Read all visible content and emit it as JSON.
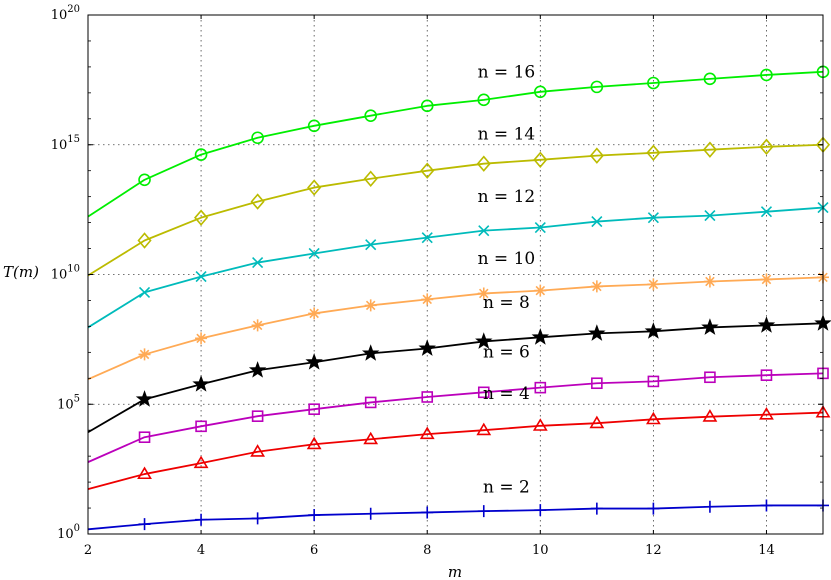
{
  "chart_data": {
    "type": "line",
    "xlabel": "m",
    "ylabel": "T(m)",
    "yscale": "log",
    "xlim": [
      2,
      15
    ],
    "ylim": [
      1,
      1e+20
    ],
    "x_ticks": [
      "2",
      "4",
      "6",
      "8",
      "10",
      "12",
      "14"
    ],
    "y_ticks": [
      {
        "base": "10",
        "exp": "0",
        "value": 1
      },
      {
        "base": "10",
        "exp": "5",
        "value": 100000.0
      },
      {
        "base": "10",
        "exp": "10",
        "value": 10000000000.0
      },
      {
        "base": "10",
        "exp": "15",
        "value": 1000000000000000.0
      },
      {
        "base": "10",
        "exp": "20",
        "value": 1e+20
      }
    ],
    "grid": true,
    "x": [
      2,
      3,
      4,
      5,
      6,
      7,
      8,
      9,
      10,
      11,
      12,
      13,
      14,
      15
    ],
    "series": [
      {
        "name": "n = 2",
        "color": "#0000cc",
        "marker": "plus",
        "log10_values": [
          0.18,
          0.38,
          0.55,
          0.6,
          0.73,
          0.78,
          0.83,
          0.88,
          0.92,
          0.98,
          0.98,
          1.05,
          1.1,
          1.1
        ]
      },
      {
        "name": "n = 4",
        "color": "#ee0000",
        "marker": "triangle",
        "log10_values": [
          1.73,
          2.31,
          2.73,
          3.17,
          3.46,
          3.65,
          3.85,
          4.0,
          4.17,
          4.27,
          4.42,
          4.52,
          4.6,
          4.68
        ]
      },
      {
        "name": "n = 6",
        "color": "#bb00bb",
        "marker": "square",
        "log10_values": [
          2.77,
          3.73,
          4.15,
          4.54,
          4.81,
          5.07,
          5.28,
          5.46,
          5.64,
          5.81,
          5.88,
          6.04,
          6.12,
          6.19
        ]
      },
      {
        "name": "n = 8",
        "color": "#000000",
        "marker": "star",
        "log10_values": [
          3.92,
          5.19,
          5.77,
          6.31,
          6.62,
          6.96,
          7.15,
          7.42,
          7.58,
          7.73,
          7.81,
          7.96,
          8.04,
          8.12
        ]
      },
      {
        "name": "n = 10",
        "color": "#ffaa55",
        "marker": "asterisk",
        "log10_values": [
          5.96,
          6.92,
          7.54,
          8.04,
          8.5,
          8.81,
          9.04,
          9.27,
          9.38,
          9.54,
          9.62,
          9.73,
          9.81,
          9.89
        ]
      },
      {
        "name": "n = 12",
        "color": "#00bbbb",
        "marker": "x",
        "log10_values": [
          7.96,
          9.31,
          9.92,
          10.46,
          10.81,
          11.15,
          11.42,
          11.69,
          11.81,
          12.04,
          12.19,
          12.27,
          12.42,
          12.58
        ]
      },
      {
        "name": "n = 14",
        "color": "#bbbb00",
        "marker": "diamond",
        "log10_values": [
          9.96,
          11.31,
          12.19,
          12.81,
          13.35,
          13.69,
          14.0,
          14.27,
          14.42,
          14.58,
          14.69,
          14.81,
          14.92,
          15.0
        ]
      },
      {
        "name": "n = 16",
        "color": "#00ee00",
        "marker": "circle",
        "log10_values": [
          12.23,
          13.65,
          14.62,
          15.27,
          15.73,
          16.12,
          16.5,
          16.73,
          17.04,
          17.23,
          17.38,
          17.54,
          17.69,
          17.81
        ]
      }
    ],
    "annotations": [
      {
        "text": "n = 2",
        "series": 0,
        "x": 9.4,
        "log10_value": 1.6
      },
      {
        "text": "n = 4",
        "series": 1,
        "x": 9.4,
        "log10_value": 5.2
      },
      {
        "text": "n = 6",
        "series": 2,
        "x": 9.4,
        "log10_value": 6.8
      },
      {
        "text": "n = 8",
        "series": 3,
        "x": 9.4,
        "log10_value": 8.7
      },
      {
        "text": "n = 10",
        "series": 4,
        "x": 9.4,
        "log10_value": 10.4
      },
      {
        "text": "n = 12",
        "series": 5,
        "x": 9.4,
        "log10_value": 12.8
      },
      {
        "text": "n = 14",
        "series": 6,
        "x": 9.4,
        "log10_value": 15.2
      },
      {
        "text": "n = 16",
        "series": 7,
        "x": 9.4,
        "log10_value": 17.6
      }
    ]
  }
}
